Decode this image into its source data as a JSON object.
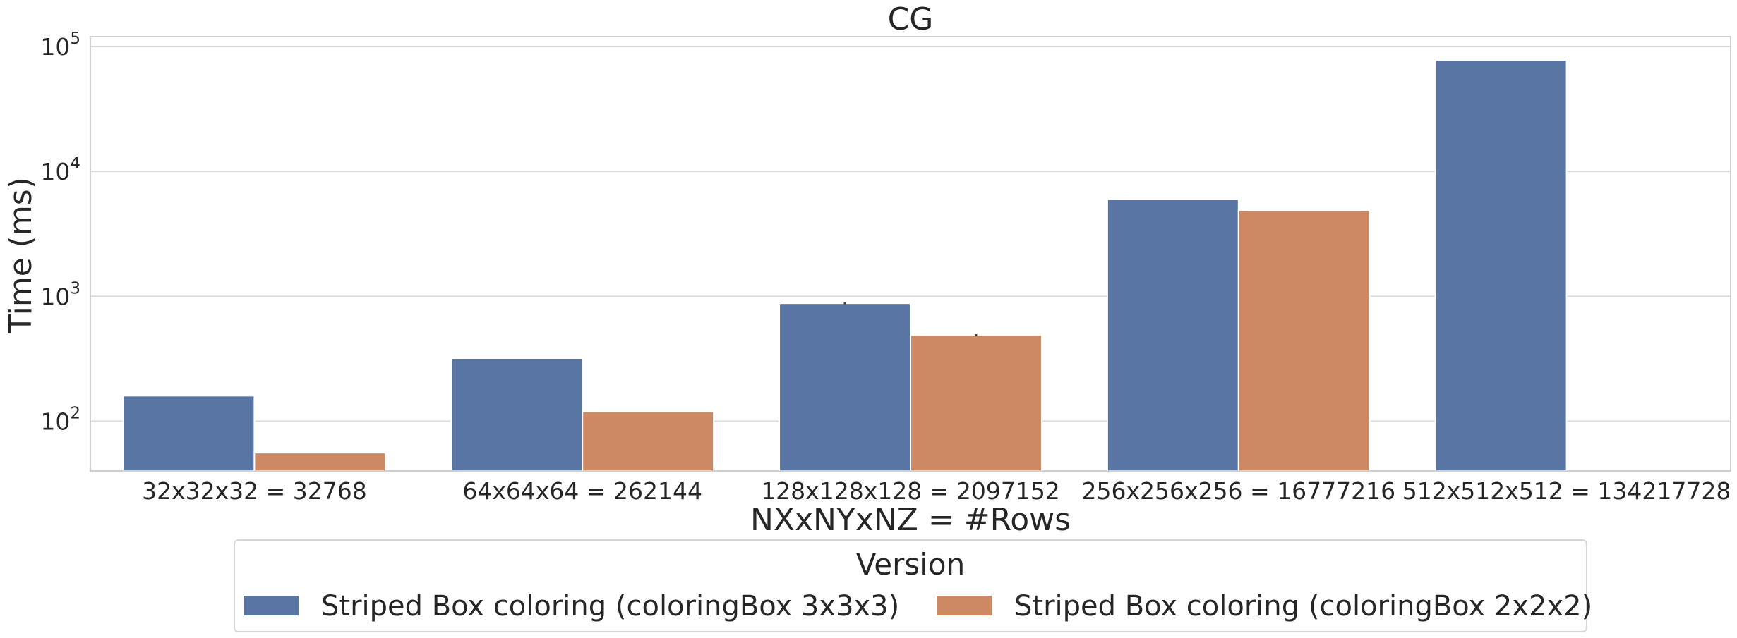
{
  "chart_data": {
    "type": "bar",
    "title": "CG",
    "xlabel": "NXxNYxNZ = #Rows",
    "ylabel": "Time (ms)",
    "yscale": "log",
    "ylim": [
      40,
      120000
    ],
    "yticks": [
      100,
      1000,
      10000,
      100000
    ],
    "ytick_labels": [
      {
        "base": "10",
        "exp": "2"
      },
      {
        "base": "10",
        "exp": "3"
      },
      {
        "base": "10",
        "exp": "4"
      },
      {
        "base": "10",
        "exp": "5"
      }
    ],
    "grid": true,
    "categories": [
      "32x32x32 = 32768",
      "64x64x64 = 262144",
      "128x128x128 = 2097152",
      "256x256x256 = 16777216",
      "512x512x512 = 134217728"
    ],
    "series": [
      {
        "name": "Striped Box coloring (coloringBox 3x3x3)",
        "color": "#5975a4",
        "values": [
          160,
          320,
          880,
          6000,
          78000
        ],
        "errors": [
          0,
          0,
          15,
          0,
          0
        ]
      },
      {
        "name": "Striped Box coloring (coloringBox 2x2x2)",
        "color": "#cc8963",
        "values": [
          56,
          120,
          490,
          4900,
          null
        ],
        "errors": [
          0,
          0,
          8,
          0,
          0
        ]
      }
    ],
    "legend": {
      "title": "Version",
      "placement": "bottom-center"
    }
  }
}
